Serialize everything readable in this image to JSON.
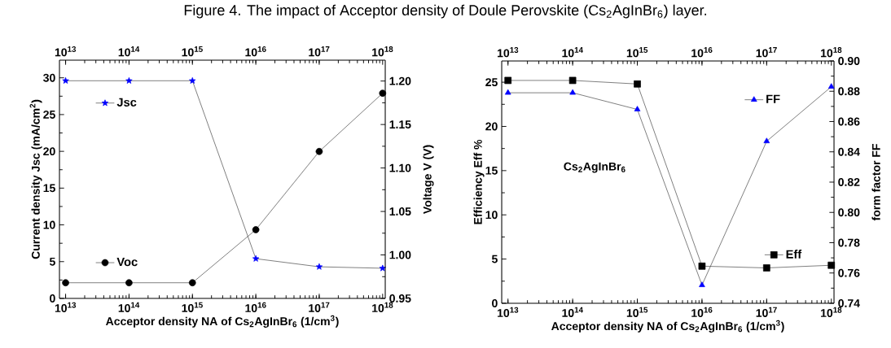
{
  "chart_data": [
    {
      "type": "line",
      "title": "Figure 4. The impact of Acceptor density of Doule Perovskite (Cs$_{2}$AgInBr$_{6}$) layer.",
      "xlabel": "Acceptor density NA of Cs$_{2}$AgInBr$_{6}$  (1/cm$^{3}$)",
      "ylabel": "Current density Jsc (mA/cm$^{2}$)",
      "y2label": "Voltage V (V)",
      "log": "x",
      "legend": "left",
      "x": [
        10000000000000.0,
        100000000000000.0,
        1000000000000000.0,
        1e+16,
        1e+17,
        1e+18
      ],
      "xlim": [
        8000000000000.0,
        1.1e+18
      ],
      "xticks": [
        {
          "value": 10000000000000.0,
          "label": "10$^{13}$"
        },
        {
          "value": 100000000000000.0,
          "label": "10$^{14}$"
        },
        {
          "value": 1000000000000000.0,
          "label": "10$^{15}$"
        },
        {
          "value": 1e+16,
          "label": "10$^{16}$"
        },
        {
          "value": 1e+17,
          "label": "10$^{17}$"
        },
        {
          "value": 1e+18,
          "label": "10$^{18}$"
        }
      ],
      "ylim": [
        0,
        32.4
      ],
      "yticks": [
        0,
        5,
        10,
        15,
        20,
        25,
        30
      ],
      "y2lim": [
        0.95,
        1.224
      ],
      "y2ticks": [
        0.95,
        {
          "value": 1.0,
          "label": "1.00"
        },
        1.05,
        {
          "value": 1.1,
          "label": "1.10"
        },
        1.15,
        {
          "value": 1.2,
          "label": "1.20"
        }
      ],
      "series": [
        {
          "name": "Jsc",
          "color": "#0000ff",
          "marker": "star",
          "values": [
            29.6,
            29.6,
            29.6,
            5.4,
            4.3,
            4.1
          ]
        },
        {
          "name": "Voc",
          "color": "#000000",
          "marker": "circle",
          "axis": "y2",
          "values": [
            0.968,
            0.968,
            0.968,
            1.029,
            1.119,
            1.186
          ]
        }
      ]
    },
    {
      "type": "line",
      "xlabel": "Acceptor density NA of Cs$_{2}$AgInBr$_{6}$  (1/cm$^{3}$)",
      "ylabel": "Efficiency  Eff %",
      "y2label": "form factor   FF",
      "log": "x",
      "legend": "right",
      "annotations": [
        "Cs$_{2}$AgInBr$_{6}$"
      ],
      "x": [
        10000000000000.0,
        100000000000000.0,
        1000000000000000.0,
        1e+16,
        1e+17,
        1e+18
      ],
      "xlim": [
        8000000000000.0,
        1.1e+18
      ],
      "xticks": [
        {
          "value": 10000000000000.0,
          "label": "10$^{13}$"
        },
        {
          "value": 100000000000000.0,
          "label": "10$^{14}$"
        },
        {
          "value": 1000000000000000.0,
          "label": "10$^{15}$"
        },
        {
          "value": 1e+16,
          "label": "10$^{16}$"
        },
        {
          "value": 1e+17,
          "label": "10$^{17}$"
        },
        {
          "value": 1e+18,
          "label": "10$^{18}$"
        }
      ],
      "ylim": [
        0,
        27.4
      ],
      "yticks": [
        0,
        5,
        10,
        15,
        20,
        25
      ],
      "y2lim": [
        0.74,
        0.9
      ],
      "y2ticks": [
        0.74,
        0.76,
        0.78,
        {
          "value": 0.8,
          "label": "0.80"
        },
        0.82,
        0.84,
        0.86,
        0.88,
        {
          "value": 0.9,
          "label": "0.90"
        }
      ],
      "series": [
        {
          "name": "Eff",
          "color": "#000000",
          "marker": "square",
          "values": [
            25.2,
            25.2,
            24.8,
            4.2,
            4.0,
            4.3
          ]
        },
        {
          "name": "FF",
          "color": "#0000ff",
          "marker": "triangle",
          "axis": "y2",
          "values": [
            0.879,
            0.879,
            0.868,
            0.752,
            0.847,
            0.883
          ]
        }
      ]
    }
  ]
}
